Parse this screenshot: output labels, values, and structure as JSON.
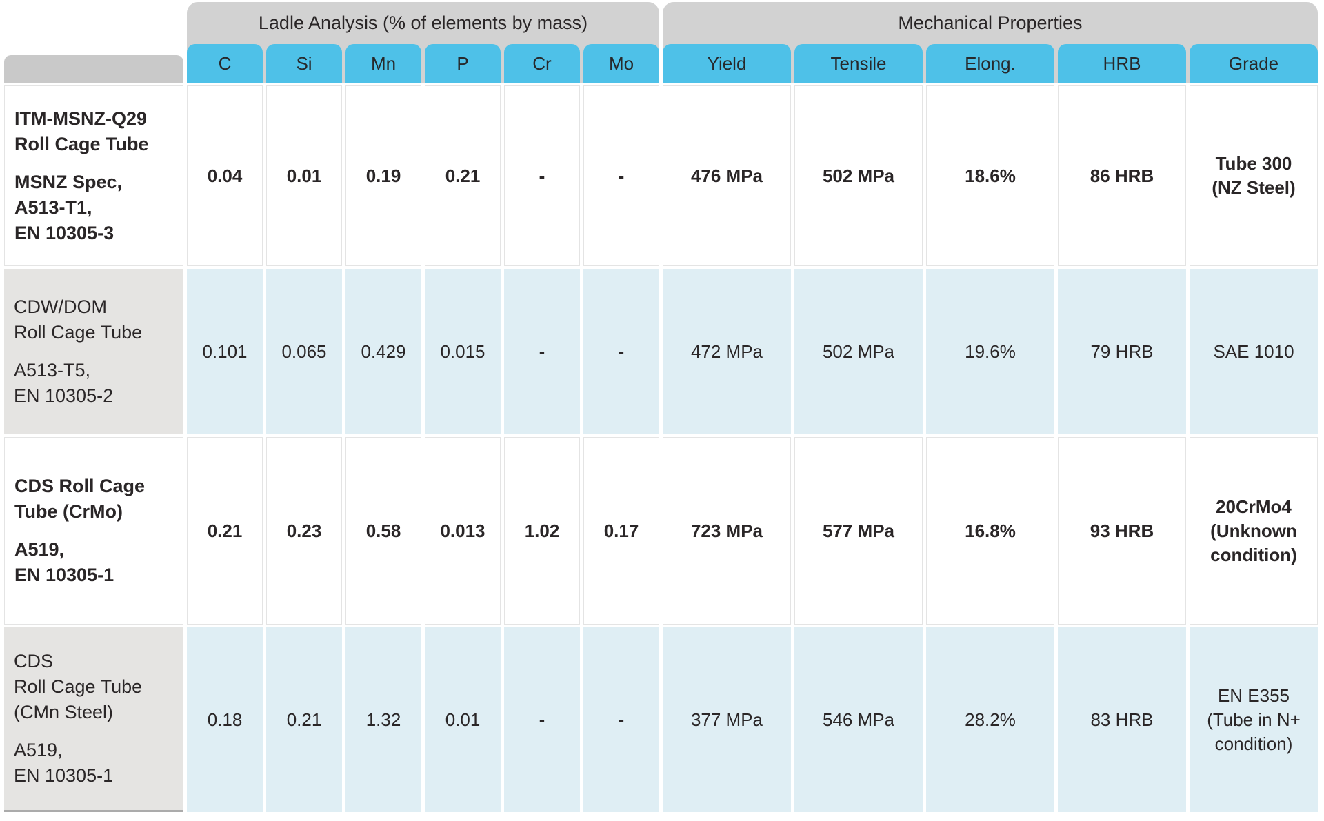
{
  "chart_data": {
    "type": "table",
    "column_groups": [
      {
        "label": "Ladle Analysis (% of elements by mass)",
        "columns": [
          "C",
          "Si",
          "Mn",
          "P",
          "Cr",
          "Mo"
        ]
      },
      {
        "label": "Mechanical Properties",
        "columns": [
          "Yield",
          "Tensile",
          "Elong.",
          "HRB",
          "Grade"
        ]
      }
    ],
    "columns": [
      "C",
      "Si",
      "Mn",
      "P",
      "Cr",
      "Mo",
      "Yield",
      "Tensile",
      "Elong.",
      "HRB",
      "Grade"
    ],
    "rows": [
      {
        "material": "ITM-MSNZ-Q29 Roll Cage Tube",
        "material_lines": [
          "ITM-MSNZ-Q29",
          "Roll Cage Tube"
        ],
        "spec": "MSNZ Spec, A513-T1, EN 10305-3",
        "spec_lines": [
          "MSNZ Spec,",
          "A513-T1,",
          "EN 10305-3"
        ],
        "values": {
          "c": "0.04",
          "si": "0.01",
          "mn": "0.19",
          "p": "0.21",
          "cr": "-",
          "mo": "-",
          "yield": "476 MPa",
          "tensile": "502 MPa",
          "elong": "18.6%",
          "hrb": "86 HRB",
          "grade": "Tube 300 (NZ Steel)"
        },
        "grade_lines": [
          "Tube 300",
          "(NZ Steel)"
        ]
      },
      {
        "material": "CDW/DOM Roll Cage Tube",
        "material_lines": [
          "CDW/DOM",
          "Roll Cage Tube"
        ],
        "spec": "A513-T5, EN 10305-2",
        "spec_lines": [
          "A513-T5,",
          "EN 10305-2"
        ],
        "values": {
          "c": "0.101",
          "si": "0.065",
          "mn": "0.429",
          "p": "0.015",
          "cr": "-",
          "mo": "-",
          "yield": "472 MPa",
          "tensile": "502 MPa",
          "elong": "19.6%",
          "hrb": "79 HRB",
          "grade": "SAE 1010"
        },
        "grade_lines": [
          "SAE 1010"
        ]
      },
      {
        "material": "CDS Roll Cage Tube (CrMo)",
        "material_lines": [
          "CDS Roll Cage",
          "Tube (CrMo)"
        ],
        "spec": "A519, EN 10305-1",
        "spec_lines": [
          "A519,",
          "EN 10305-1"
        ],
        "values": {
          "c": "0.21",
          "si": "0.23",
          "mn": "0.58",
          "p": "0.013",
          "cr": "1.02",
          "mo": "0.17",
          "yield": "723 MPa",
          "tensile": "577 MPa",
          "elong": "16.8%",
          "hrb": "93 HRB",
          "grade": "20CrMo4 (Unknown condition)"
        },
        "grade_lines": [
          "20CrMo4",
          "(Unknown",
          "condition)"
        ]
      },
      {
        "material": "CDS Roll Cage Tube (CMn Steel)",
        "material_lines": [
          "CDS",
          "Roll Cage Tube",
          "(CMn Steel)"
        ],
        "spec": "A519, EN 10305-1",
        "spec_lines": [
          "A519,",
          "EN 10305-1"
        ],
        "values": {
          "c": "0.18",
          "si": "0.21",
          "mn": "1.32",
          "p": "0.01",
          "cr": "-",
          "mo": "-",
          "yield": "377 MPa",
          "tensile": "546 MPa",
          "elong": "28.2%",
          "hrb": "83 HRB",
          "grade": "EN E355 (Tube in N+ condition)"
        },
        "grade_lines": [
          "EN E355",
          "(Tube in N+",
          "condition)"
        ]
      }
    ],
    "layout": {
      "grid": "off",
      "legend": "none"
    }
  },
  "colors": {
    "header_blue": "#4EC1E8",
    "group_header_gray": "#D2D2D2",
    "corner_gray": "#C9C9C9",
    "row_tint_blue": "#DFEEF4",
    "label_gray": "#E5E4E2",
    "text": "#2A2627",
    "highlight_border": "#2D2D2D"
  }
}
